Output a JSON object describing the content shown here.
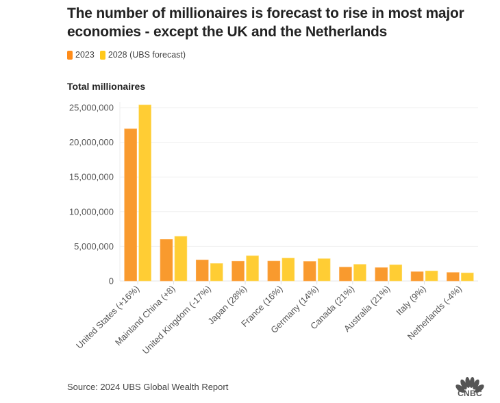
{
  "header": {
    "title": "The number of millionaires is forecast to rise in most major economies - except the UK and the Netherlands"
  },
  "legend": [
    {
      "label": "2023",
      "color": "#FF8C1A"
    },
    {
      "label": "2028 (UBS forecast)",
      "color": "#FFC81A"
    }
  ],
  "footer": {
    "source": "Source: 2024 UBS Global Wealth Report",
    "logo_text": "CNBC",
    "logo_icon": "cnbc-peacock-icon"
  },
  "chart_data": {
    "type": "bar",
    "title": "The number of millionaires is forecast to rise in most major economies - except the UK and the Netherlands",
    "subtitle": "Total millionaires",
    "xlabel": "",
    "ylabel": "Total millionaires",
    "categories": [
      "United States (+16%)",
      "Mainland China (+8)",
      "United Kingdom (-17%)",
      "Japan (28%)",
      "France (16%)",
      "Germany (14%)",
      "Canada (21%)",
      "Australia (21%)",
      "Italy (9%)",
      "Netherlands (-4%)"
    ],
    "series": [
      {
        "name": "2023",
        "color": "#F99A2E",
        "values": [
          21950000,
          6000000,
          3050000,
          2850000,
          2870000,
          2820000,
          2000000,
          1930000,
          1340000,
          1230000
        ]
      },
      {
        "name": "2028 (UBS forecast)",
        "color": "#FFCD34",
        "values": [
          25400000,
          6450000,
          2530000,
          3650000,
          3320000,
          3220000,
          2410000,
          2340000,
          1460000,
          1180000
        ]
      }
    ],
    "ylim": [
      0,
      25000000
    ],
    "yticks": [
      0,
      5000000,
      10000000,
      15000000,
      20000000,
      25000000
    ],
    "ytick_labels": [
      "0",
      "5,000,000",
      "10,000,000",
      "15,000,000",
      "20,000,000",
      "25,000,000"
    ],
    "grid": true,
    "legend_position": "top-left"
  }
}
